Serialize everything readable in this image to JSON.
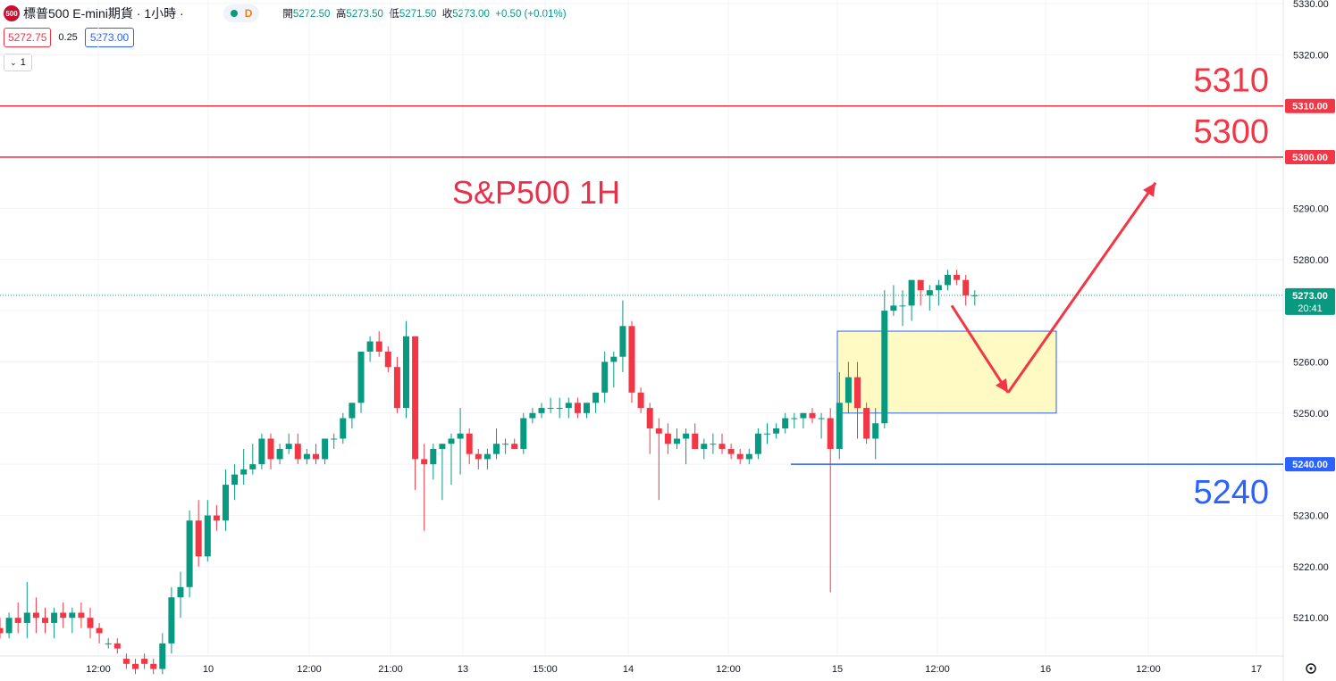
{
  "header": {
    "logo": "500",
    "symbol": "標普500 E-mini期貨 · 1小時 · ",
    "status": "D",
    "ohlc": [
      {
        "k": "開",
        "v": "5272.50"
      },
      {
        "k": "高",
        "v": "5273.50"
      },
      {
        "k": "低",
        "v": "5271.50"
      },
      {
        "k": "收",
        "v": "5273.00"
      }
    ],
    "change": "+0.50 (+0.01%)",
    "bid": "5272.75",
    "spread": "0.25",
    "ask": "5273.00",
    "interval": "1"
  },
  "chart_data": {
    "type": "candlestick",
    "title": "S&P500 1H",
    "ylim": [
      5201,
      5331
    ],
    "y_ticks": [
      5210,
      5220,
      5230,
      5240,
      5250,
      5260,
      5270,
      5280,
      5290,
      5300,
      5310,
      5320,
      5330
    ],
    "x_ticks": [
      "12:00",
      "10",
      "12:00",
      "21:00",
      "13",
      "15:00",
      "14",
      "12:00",
      "15",
      "12:00",
      "16",
      "12:00",
      "17"
    ],
    "current_price": "5273.00",
    "countdown": "20:41",
    "levels": [
      {
        "value": 5310,
        "label": "5310",
        "axis_label": "5310.00",
        "color": "#f23645"
      },
      {
        "value": 5300,
        "label": "5300",
        "axis_label": "5300.00",
        "color": "#f23645"
      },
      {
        "value": 5240,
        "label": "5240",
        "axis_label": "5240.00",
        "color": "#2962ff"
      }
    ],
    "zone": {
      "top": 5266,
      "bottom": 5250,
      "color": "#fff9c4",
      "border": "#2962ff"
    },
    "projection": [
      [
        5271,
        5254
      ],
      [
        5254,
        5295
      ]
    ],
    "candles": [
      [
        5208,
        5210,
        5206,
        5207
      ],
      [
        5207,
        5211,
        5206,
        5210
      ],
      [
        5210,
        5213,
        5207,
        5209
      ],
      [
        5209,
        5217,
        5206,
        5211
      ],
      [
        5211,
        5214,
        5207,
        5210
      ],
      [
        5210,
        5212,
        5207,
        5209
      ],
      [
        5209,
        5212,
        5206,
        5211
      ],
      [
        5211,
        5213,
        5208,
        5210
      ],
      [
        5210,
        5212,
        5207,
        5211
      ],
      [
        5211,
        5213,
        5208,
        5210
      ],
      [
        5210,
        5212,
        5206,
        5208
      ],
      [
        5208,
        5209,
        5205,
        5207
      ],
      [
        5205,
        5206,
        5204,
        5205
      ],
      [
        5205,
        5206,
        5203,
        5204
      ],
      [
        5202,
        5203,
        5200,
        5201
      ],
      [
        5201,
        5202,
        5199,
        5200
      ],
      [
        5202,
        5203,
        5200,
        5201
      ],
      [
        5201,
        5202,
        5199,
        5200
      ],
      [
        5200,
        5207,
        5199,
        5205
      ],
      [
        5205,
        5216,
        5203,
        5214
      ],
      [
        5214,
        5219,
        5210,
        5216
      ],
      [
        5216,
        5231,
        5214,
        5229
      ],
      [
        5229,
        5233,
        5220,
        5222
      ],
      [
        5222,
        5233,
        5221,
        5230
      ],
      [
        5230,
        5232,
        5227,
        5229
      ],
      [
        5229,
        5239,
        5227,
        5236
      ],
      [
        5236,
        5240,
        5233,
        5238
      ],
      [
        5238,
        5243,
        5236,
        5239
      ],
      [
        5239,
        5244,
        5238,
        5240
      ],
      [
        5240,
        5246,
        5239,
        5245
      ],
      [
        5245,
        5246,
        5239,
        5241
      ],
      [
        5241,
        5244,
        5240,
        5243
      ],
      [
        5243,
        5246,
        5242,
        5244
      ],
      [
        5244,
        5246,
        5240,
        5241
      ],
      [
        5241,
        5243,
        5240,
        5242
      ],
      [
        5242,
        5244,
        5240,
        5241
      ],
      [
        5241,
        5245,
        5240,
        5245
      ],
      [
        5245,
        5246,
        5243,
        5245
      ],
      [
        5245,
        5250,
        5244,
        5249
      ],
      [
        5249,
        5252,
        5247,
        5252
      ],
      [
        5252,
        5262,
        5250,
        5262
      ],
      [
        5262,
        5265,
        5260,
        5264
      ],
      [
        5264,
        5266,
        5261,
        5262
      ],
      [
        5262,
        5263,
        5258,
        5259
      ],
      [
        5259,
        5261,
        5250,
        5251
      ],
      [
        5251,
        5268,
        5249,
        5265
      ],
      [
        5265,
        5265,
        5235,
        5241
      ],
      [
        5241,
        5244,
        5227,
        5240
      ],
      [
        5240,
        5244,
        5237,
        5243
      ],
      [
        5243,
        5244,
        5233,
        5244
      ],
      [
        5244,
        5246,
        5236,
        5245
      ],
      [
        5245,
        5251,
        5238,
        5246
      ],
      [
        5246,
        5247,
        5240,
        5242
      ],
      [
        5242,
        5243,
        5239,
        5241
      ],
      [
        5241,
        5243,
        5239,
        5242
      ],
      [
        5242,
        5247,
        5241,
        5244
      ],
      [
        5244,
        5245,
        5242,
        5244
      ],
      [
        5244,
        5245,
        5243,
        5243
      ],
      [
        5243,
        5250,
        5242,
        5249
      ],
      [
        5249,
        5251,
        5248,
        5250
      ],
      [
        5250,
        5252,
        5249,
        5251
      ],
      [
        5251,
        5253,
        5250,
        5251
      ],
      [
        5251,
        5253,
        5249,
        5251
      ],
      [
        5251,
        5253,
        5249,
        5252
      ],
      [
        5252,
        5253,
        5249,
        5250
      ],
      [
        5250,
        5252,
        5249,
        5252
      ],
      [
        5252,
        5254,
        5250,
        5254
      ],
      [
        5254,
        5262,
        5252,
        5260
      ],
      [
        5260,
        5262,
        5255,
        5261
      ],
      [
        5261,
        5272,
        5258,
        5267
      ],
      [
        5267,
        5268,
        5252,
        5254
      ],
      [
        5254,
        5255,
        5250,
        5251
      ],
      [
        5251,
        5252,
        5242,
        5247
      ],
      [
        5247,
        5249,
        5233,
        5246
      ],
      [
        5246,
        5248,
        5242,
        5244
      ],
      [
        5244,
        5247,
        5243,
        5245
      ],
      [
        5245,
        5247,
        5240,
        5246
      ],
      [
        5246,
        5248,
        5243,
        5243
      ],
      [
        5243,
        5245,
        5241,
        5244
      ],
      [
        5244,
        5246,
        5242,
        5244
      ],
      [
        5244,
        5246,
        5242,
        5243
      ],
      [
        5243,
        5244,
        5241,
        5242
      ],
      [
        5242,
        5243,
        5240,
        5241
      ],
      [
        5241,
        5243,
        5240,
        5242
      ],
      [
        5242,
        5247,
        5241,
        5246
      ],
      [
        5246,
        5248,
        5244,
        5246
      ],
      [
        5246,
        5248,
        5245,
        5247
      ],
      [
        5247,
        5250,
        5246,
        5249
      ],
      [
        5249,
        5250,
        5247,
        5249
      ],
      [
        5249,
        5250,
        5247,
        5250
      ],
      [
        5250,
        5251,
        5248,
        5249
      ],
      [
        5249,
        5250,
        5245,
        5249
      ],
      [
        5249,
        5251,
        5215,
        5243
      ],
      [
        5243,
        5258,
        5241,
        5252
      ],
      [
        5252,
        5260,
        5250,
        5257
      ],
      [
        5257,
        5260,
        5245,
        5251
      ],
      [
        5251,
        5252,
        5244,
        5245
      ],
      [
        5245,
        5251,
        5241,
        5248
      ],
      [
        5248,
        5274,
        5247,
        5270
      ],
      [
        5270,
        5275,
        5269,
        5271
      ],
      [
        5271,
        5274,
        5267,
        5271
      ],
      [
        5271,
        5275,
        5268,
        5276
      ],
      [
        5276,
        5276,
        5271,
        5274
      ],
      [
        5273,
        5275,
        5270,
        5274
      ],
      [
        5274,
        5276,
        5271,
        5275
      ],
      [
        5275,
        5278,
        5274,
        5277
      ],
      [
        5277,
        5278,
        5275,
        5276
      ],
      [
        5276,
        5277,
        5271,
        5273
      ],
      [
        5273,
        5274,
        5271,
        5273
      ]
    ]
  }
}
